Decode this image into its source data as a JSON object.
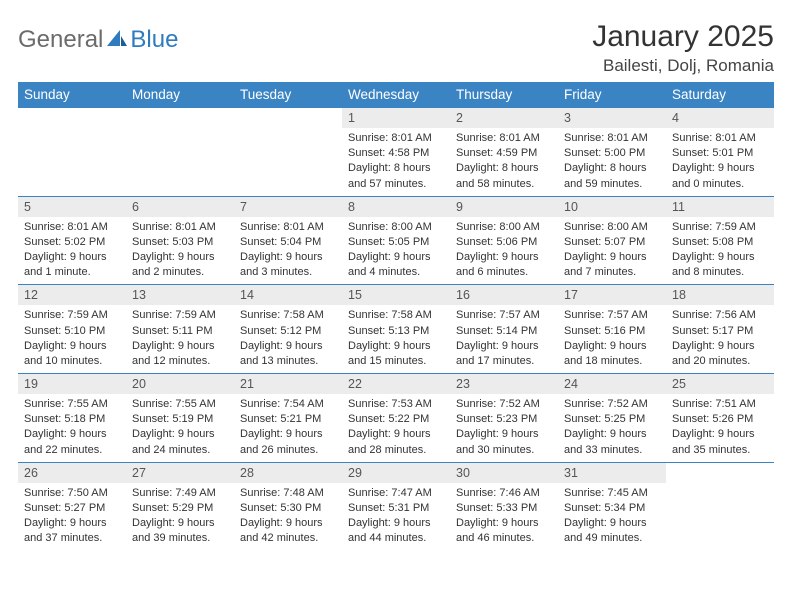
{
  "logo": {
    "text1": "General",
    "text2": "Blue"
  },
  "title": "January 2025",
  "location": "Bailesti, Dolj, Romania",
  "colors": {
    "header_bg": "#3b84c4",
    "header_fg": "#ffffff",
    "daynum_bg": "#ececec",
    "border": "#3b84c4",
    "logo_gray": "#6b6b6b",
    "logo_blue": "#2f7bbf"
  },
  "weekdays": [
    "Sunday",
    "Monday",
    "Tuesday",
    "Wednesday",
    "Thursday",
    "Friday",
    "Saturday"
  ],
  "weeks": [
    [
      null,
      null,
      null,
      {
        "n": "1",
        "sr": "Sunrise: 8:01 AM",
        "ss": "Sunset: 4:58 PM",
        "dl": "Daylight: 8 hours and 57 minutes."
      },
      {
        "n": "2",
        "sr": "Sunrise: 8:01 AM",
        "ss": "Sunset: 4:59 PM",
        "dl": "Daylight: 8 hours and 58 minutes."
      },
      {
        "n": "3",
        "sr": "Sunrise: 8:01 AM",
        "ss": "Sunset: 5:00 PM",
        "dl": "Daylight: 8 hours and 59 minutes."
      },
      {
        "n": "4",
        "sr": "Sunrise: 8:01 AM",
        "ss": "Sunset: 5:01 PM",
        "dl": "Daylight: 9 hours and 0 minutes."
      }
    ],
    [
      {
        "n": "5",
        "sr": "Sunrise: 8:01 AM",
        "ss": "Sunset: 5:02 PM",
        "dl": "Daylight: 9 hours and 1 minute."
      },
      {
        "n": "6",
        "sr": "Sunrise: 8:01 AM",
        "ss": "Sunset: 5:03 PM",
        "dl": "Daylight: 9 hours and 2 minutes."
      },
      {
        "n": "7",
        "sr": "Sunrise: 8:01 AM",
        "ss": "Sunset: 5:04 PM",
        "dl": "Daylight: 9 hours and 3 minutes."
      },
      {
        "n": "8",
        "sr": "Sunrise: 8:00 AM",
        "ss": "Sunset: 5:05 PM",
        "dl": "Daylight: 9 hours and 4 minutes."
      },
      {
        "n": "9",
        "sr": "Sunrise: 8:00 AM",
        "ss": "Sunset: 5:06 PM",
        "dl": "Daylight: 9 hours and 6 minutes."
      },
      {
        "n": "10",
        "sr": "Sunrise: 8:00 AM",
        "ss": "Sunset: 5:07 PM",
        "dl": "Daylight: 9 hours and 7 minutes."
      },
      {
        "n": "11",
        "sr": "Sunrise: 7:59 AM",
        "ss": "Sunset: 5:08 PM",
        "dl": "Daylight: 9 hours and 8 minutes."
      }
    ],
    [
      {
        "n": "12",
        "sr": "Sunrise: 7:59 AM",
        "ss": "Sunset: 5:10 PM",
        "dl": "Daylight: 9 hours and 10 minutes."
      },
      {
        "n": "13",
        "sr": "Sunrise: 7:59 AM",
        "ss": "Sunset: 5:11 PM",
        "dl": "Daylight: 9 hours and 12 minutes."
      },
      {
        "n": "14",
        "sr": "Sunrise: 7:58 AM",
        "ss": "Sunset: 5:12 PM",
        "dl": "Daylight: 9 hours and 13 minutes."
      },
      {
        "n": "15",
        "sr": "Sunrise: 7:58 AM",
        "ss": "Sunset: 5:13 PM",
        "dl": "Daylight: 9 hours and 15 minutes."
      },
      {
        "n": "16",
        "sr": "Sunrise: 7:57 AM",
        "ss": "Sunset: 5:14 PM",
        "dl": "Daylight: 9 hours and 17 minutes."
      },
      {
        "n": "17",
        "sr": "Sunrise: 7:57 AM",
        "ss": "Sunset: 5:16 PM",
        "dl": "Daylight: 9 hours and 18 minutes."
      },
      {
        "n": "18",
        "sr": "Sunrise: 7:56 AM",
        "ss": "Sunset: 5:17 PM",
        "dl": "Daylight: 9 hours and 20 minutes."
      }
    ],
    [
      {
        "n": "19",
        "sr": "Sunrise: 7:55 AM",
        "ss": "Sunset: 5:18 PM",
        "dl": "Daylight: 9 hours and 22 minutes."
      },
      {
        "n": "20",
        "sr": "Sunrise: 7:55 AM",
        "ss": "Sunset: 5:19 PM",
        "dl": "Daylight: 9 hours and 24 minutes."
      },
      {
        "n": "21",
        "sr": "Sunrise: 7:54 AM",
        "ss": "Sunset: 5:21 PM",
        "dl": "Daylight: 9 hours and 26 minutes."
      },
      {
        "n": "22",
        "sr": "Sunrise: 7:53 AM",
        "ss": "Sunset: 5:22 PM",
        "dl": "Daylight: 9 hours and 28 minutes."
      },
      {
        "n": "23",
        "sr": "Sunrise: 7:52 AM",
        "ss": "Sunset: 5:23 PM",
        "dl": "Daylight: 9 hours and 30 minutes."
      },
      {
        "n": "24",
        "sr": "Sunrise: 7:52 AM",
        "ss": "Sunset: 5:25 PM",
        "dl": "Daylight: 9 hours and 33 minutes."
      },
      {
        "n": "25",
        "sr": "Sunrise: 7:51 AM",
        "ss": "Sunset: 5:26 PM",
        "dl": "Daylight: 9 hours and 35 minutes."
      }
    ],
    [
      {
        "n": "26",
        "sr": "Sunrise: 7:50 AM",
        "ss": "Sunset: 5:27 PM",
        "dl": "Daylight: 9 hours and 37 minutes."
      },
      {
        "n": "27",
        "sr": "Sunrise: 7:49 AM",
        "ss": "Sunset: 5:29 PM",
        "dl": "Daylight: 9 hours and 39 minutes."
      },
      {
        "n": "28",
        "sr": "Sunrise: 7:48 AM",
        "ss": "Sunset: 5:30 PM",
        "dl": "Daylight: 9 hours and 42 minutes."
      },
      {
        "n": "29",
        "sr": "Sunrise: 7:47 AM",
        "ss": "Sunset: 5:31 PM",
        "dl": "Daylight: 9 hours and 44 minutes."
      },
      {
        "n": "30",
        "sr": "Sunrise: 7:46 AM",
        "ss": "Sunset: 5:33 PM",
        "dl": "Daylight: 9 hours and 46 minutes."
      },
      {
        "n": "31",
        "sr": "Sunrise: 7:45 AM",
        "ss": "Sunset: 5:34 PM",
        "dl": "Daylight: 9 hours and 49 minutes."
      },
      null
    ]
  ]
}
